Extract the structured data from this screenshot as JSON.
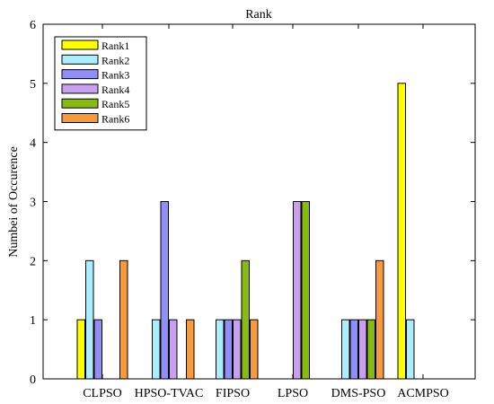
{
  "chart_data": {
    "type": "bar",
    "title": "Rank",
    "xlabel": "",
    "ylabel": "Numbei of Occurence",
    "ylim": [
      0,
      6
    ],
    "yticks": [
      "0",
      "1",
      "2",
      "3",
      "4",
      "5",
      "6"
    ],
    "categories": [
      "CLPSO",
      "HPSO-TVAC",
      "FIPSO",
      "LPSO",
      "DMS-PSO",
      "ACMPSO"
    ],
    "legend_position": "top-left",
    "grid": false,
    "series": [
      {
        "name": "Rank1",
        "color": "#ffff00",
        "values": [
          1,
          0,
          0,
          0,
          0,
          5
        ]
      },
      {
        "name": "Rank2",
        "color": "#aaeeff",
        "values": [
          2,
          1,
          1,
          0,
          1,
          1
        ]
      },
      {
        "name": "Rank3",
        "color": "#8f8ff5",
        "values": [
          1,
          3,
          1,
          0,
          1,
          0
        ]
      },
      {
        "name": "Rank4",
        "color": "#c9a0ef",
        "values": [
          0,
          1,
          1,
          3,
          1,
          0
        ]
      },
      {
        "name": "Rank5",
        "color": "#88bb11",
        "values": [
          0,
          0,
          2,
          3,
          1,
          0
        ]
      },
      {
        "name": "Rank6",
        "color": "#f79a3d",
        "values": [
          2,
          1,
          1,
          0,
          2,
          0
        ]
      }
    ]
  }
}
